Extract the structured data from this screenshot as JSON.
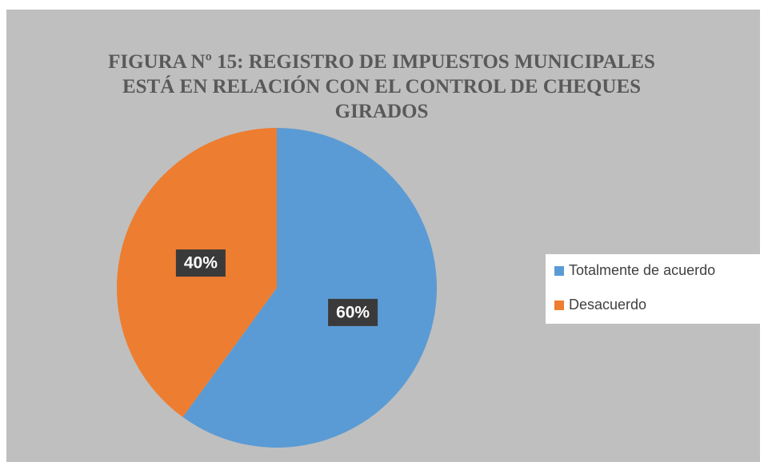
{
  "chart_data": {
    "type": "pie",
    "title": "FIGURA Nº 15: REGISTRO DE IMPUESTOS MUNICIPALES ESTÁ EN RELACIÓN CON EL CONTROL DE CHEQUES GIRADOS",
    "categories": [
      "Totalmente de acuerdo",
      "Desacuerdo"
    ],
    "values": [
      60,
      40
    ],
    "value_labels": [
      "60%",
      "40%"
    ],
    "colors": [
      "#5b9bd5",
      "#ed7d31"
    ],
    "legend": "right"
  }
}
